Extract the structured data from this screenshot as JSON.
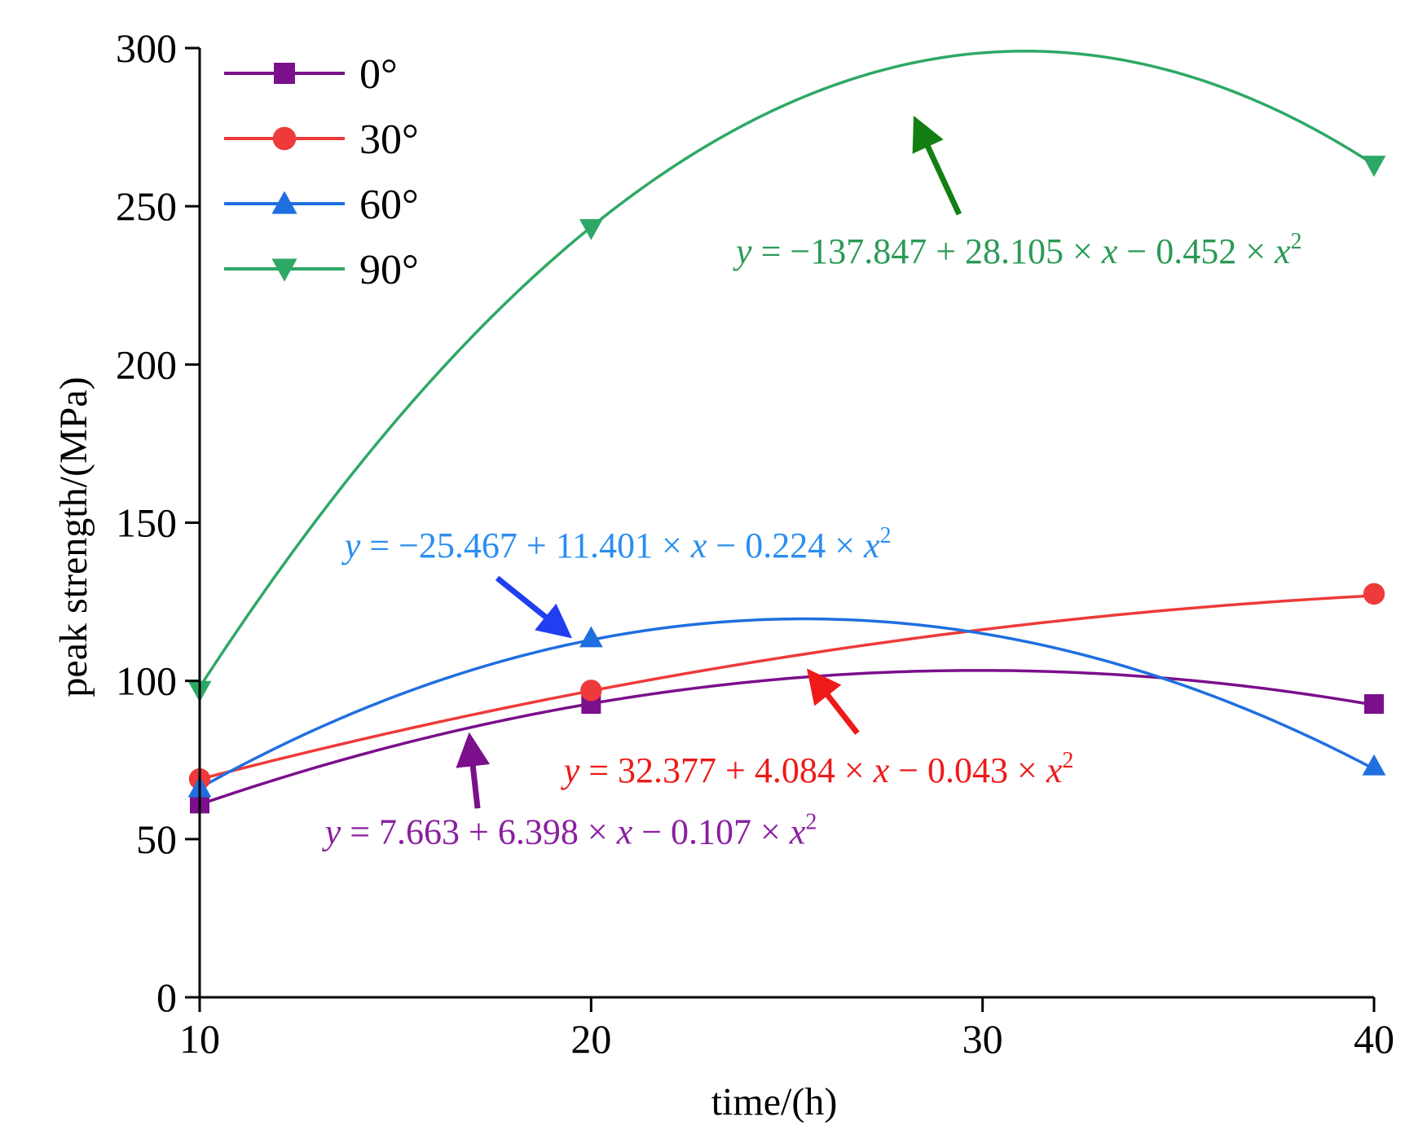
{
  "chart_data": {
    "type": "line",
    "xlabel": "time/(h)",
    "ylabel": "peak strength/(MPa)",
    "xlim": [
      10,
      40
    ],
    "ylim": [
      0,
      300
    ],
    "x_ticks": [
      10,
      20,
      30,
      40
    ],
    "y_ticks": [
      0,
      50,
      100,
      150,
      200,
      250,
      300
    ],
    "x_tick_labels": [
      "10",
      "20",
      "30",
      "40"
    ],
    "y_tick_labels": [
      "0",
      "50",
      "100",
      "150",
      "200",
      "250",
      "300"
    ],
    "grid": false,
    "legend_position": "top-left",
    "x": [
      10,
      20,
      40
    ],
    "series": [
      {
        "name": "0°",
        "color": "#7b0f8c",
        "marker": "square",
        "values": [
          61.2,
          92.7,
          92.7
        ],
        "fit": {
          "a": 7.663,
          "b": 6.398,
          "c": -0.107
        },
        "equation": {
          "const": "7.663",
          "op1": "+",
          "b": "6.398",
          "op2": "−",
          "c": "0.107"
        }
      },
      {
        "name": "30°",
        "color": "#ee3a3a",
        "marker": "circle",
        "values": [
          69.0,
          97.0,
          127.5
        ],
        "fit": {
          "a": 32.377,
          "b": 4.084,
          "c": -0.043
        },
        "equation": {
          "const": "32.377",
          "op1": "+",
          "b": "4.084",
          "op2": "−",
          "c": "0.043"
        }
      },
      {
        "name": "60°",
        "color": "#1f6fe0",
        "marker": "triangle-up",
        "values": [
          66.2,
          113.6,
          73.1
        ],
        "fit": {
          "a": -25.467,
          "b": 11.401,
          "c": -0.224
        },
        "equation": {
          "const": "−25.467",
          "op1": "+",
          "b": "11.401",
          "op2": "−",
          "c": "0.224"
        }
      },
      {
        "name": "90°",
        "color": "#2ea866",
        "marker": "triangle-down",
        "values": [
          97.0,
          243.0,
          263.0
        ],
        "fit": {
          "a": -137.847,
          "b": 28.105,
          "c": -0.452
        },
        "equation": {
          "const": "−137.847",
          "op1": "+",
          "b": "28.105",
          "op2": "−",
          "c": "0.452"
        }
      }
    ],
    "annotations": [
      {
        "series": "90°",
        "text_color": "#2a9a55",
        "arrow_color": "#137f13",
        "arrow_from": [
          29.4,
          247.5
        ],
        "arrow_to": [
          28.3,
          277.0
        ],
        "text_x": 23.7,
        "text_y": 232.0
      },
      {
        "series": "60°",
        "text_color": "#2a8ef0",
        "arrow_color": "#1f3ff0",
        "arrow_from": [
          17.6,
          132.5
        ],
        "arrow_to": [
          19.4,
          114.6
        ],
        "text_x": 13.7,
        "text_y": 139.0
      },
      {
        "series": "30°",
        "text_color": "#ee1a1a",
        "arrow_color": "#ee1a1a",
        "arrow_from": [
          26.8,
          83.5
        ],
        "arrow_to": [
          25.6,
          102.5
        ],
        "text_x": 19.3,
        "text_y": 68.0
      },
      {
        "series": "0°",
        "text_color": "#8a1fa0",
        "arrow_color": "#7b0f8c",
        "arrow_from": [
          17.1,
          59.7
        ],
        "arrow_to": [
          16.9,
          82.0
        ],
        "text_x": 13.2,
        "text_y": 48.5
      }
    ]
  }
}
